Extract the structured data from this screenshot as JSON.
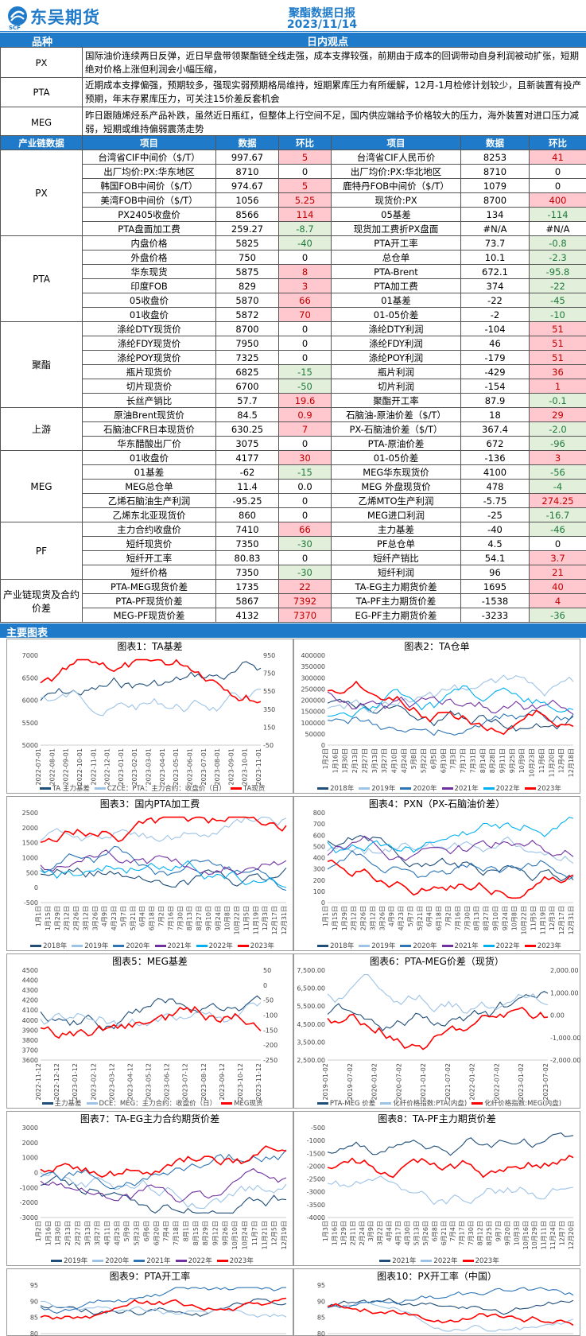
{
  "header": {
    "company": "东吴期货",
    "logo_letters": "SCF",
    "title": "聚酯数据日报",
    "date": "2023/11/14"
  },
  "view": {
    "head_left": "品种",
    "head_right": "日内观点",
    "rows": [
      {
        "name": "PX",
        "text": "国际油价连续两日反弹，近日早盘带领聚酯链全线走强，成本支撑较强，前期由于成本的回调带动自身利润被动扩张，短期绝对价格上涨但利润会小幅压缩，"
      },
      {
        "name": "PTA",
        "text": "近期成本支撑偏强，预期较多，强现实弱预期格局维持，短期累库压力有所缓解，12月-1月检修计划较少，且新装置有投产预期，年末存累库压力，可关注15价差反套机会"
      },
      {
        "name": "MEG",
        "text": "昨日跟随烯烃系产品补跌，虽然近日瓶红，但整体上行空间不足，国内供应端给予价格较大的压力，海外装置对进口压力减弱，短期或维持偏弱震荡走势"
      }
    ]
  },
  "table": {
    "headers": [
      "产业链数据",
      "项目",
      "数据",
      "环比",
      "项目",
      "数据",
      "环比"
    ],
    "groups": [
      {
        "name": "PX",
        "rows": [
          [
            "台湾省CIF中间价（$/T）",
            "997.67",
            "5",
            "r",
            "台湾省CIF人民币价",
            "8253",
            "41",
            "r"
          ],
          [
            "出厂均价:PX:华东地区",
            "8710",
            "0",
            "",
            "出厂均价:PX:华北地区",
            "8710",
            "0",
            ""
          ],
          [
            "韩国FOB中间价（$/T）",
            "974.67",
            "5",
            "r",
            "鹿特丹FOB中间价（$/T）",
            "1079",
            "0",
            ""
          ],
          [
            "美湾FOB中间价（$/T）",
            "1056",
            "5.25",
            "r",
            "现货价:PX",
            "8700",
            "400",
            "r"
          ],
          [
            "PX2405收盘价",
            "8566",
            "114",
            "r",
            "05基差",
            "134",
            "-114",
            "g"
          ],
          [
            "PTA盘面加工费",
            "259.27",
            "-8.7",
            "g",
            "现货加工费折PX盘面",
            "#N/A",
            "#N/A",
            ""
          ]
        ]
      },
      {
        "name": "PTA",
        "rows": [
          [
            "内盘价格",
            "5825",
            "-40",
            "g",
            "PTA开工率",
            "73.7",
            "-0.8",
            "g"
          ],
          [
            "外盘价格",
            "750",
            "0",
            "",
            "总仓单",
            "10.1",
            "-2.3",
            "g"
          ],
          [
            "华东现货",
            "5875",
            "8",
            "r",
            "PTA-Brent",
            "672.1",
            "-95.8",
            "g"
          ],
          [
            "印度FOB",
            "829",
            "3",
            "r",
            "PTA加工费",
            "374",
            "-22",
            "g"
          ],
          [
            "05收盘价",
            "5870",
            "66",
            "r",
            "01基差",
            "-22",
            "-45",
            "g"
          ],
          [
            "01收盘价",
            "5872",
            "70",
            "r",
            "01-05价差",
            "-2",
            "-10",
            "g"
          ]
        ]
      },
      {
        "name": "聚酯",
        "rows": [
          [
            "涤纶DTY现货价",
            "8700",
            "0",
            "",
            "涤纶DTY利润",
            "-104",
            "51",
            "r"
          ],
          [
            "涤纶FDY现货价",
            "7950",
            "0",
            "",
            "涤纶FDY利润",
            "46",
            "51",
            "r"
          ],
          [
            "涤纶POY现货价",
            "7325",
            "0",
            "",
            "涤纶POY利润",
            "-179",
            "51",
            "r"
          ],
          [
            "瓶片现货价",
            "6825",
            "-15",
            "g",
            "瓶片利润",
            "-429",
            "36",
            "r"
          ],
          [
            "切片现货价",
            "6700",
            "-50",
            "g",
            "切片利润",
            "-154",
            "1",
            "r"
          ],
          [
            "长丝产销比",
            "57.7",
            "19.6",
            "r",
            "聚酯开工率",
            "87.9",
            "-0.1",
            "g"
          ]
        ]
      },
      {
        "name": "上游",
        "rows": [
          [
            "原油Brent现货价",
            "84.5",
            "0.9",
            "r",
            "石脑油-原油价差（$/T）",
            "18",
            "29",
            "r"
          ],
          [
            "石脑油CFR日本现货价",
            "630.25",
            "7",
            "r",
            "PX-石脑油价差（$/T）",
            "367.4",
            "-2.0",
            "g"
          ],
          [
            "华东醋酸出厂价",
            "3075",
            "0",
            "",
            "PTA-原油价差",
            "672",
            "-96",
            "g"
          ]
        ]
      },
      {
        "name": "MEG",
        "rows": [
          [
            "01收盘价",
            "4177",
            "30",
            "r",
            "01-05价差",
            "-136",
            "3",
            "r"
          ],
          [
            "01基差",
            "-62",
            "-15",
            "g",
            "MEG华东现货价",
            "4100",
            "-56",
            "g"
          ],
          [
            "MEG总仓单",
            "11.4",
            "0.0",
            "",
            "MEG 外盘现货价",
            "478",
            "-4",
            "g"
          ],
          [
            "乙烯石脑油生产利润",
            "-95.25",
            "0",
            "",
            "乙烯MTO生产利润",
            "-5.75",
            "274.25",
            "r"
          ],
          [
            "乙烯东北亚现货价",
            "860",
            "0",
            "",
            "MEG进口利润",
            "-25",
            "-16.7",
            "g"
          ]
        ]
      },
      {
        "name": "PF",
        "rows": [
          [
            "主力合约收盘价",
            "7410",
            "66",
            "r",
            "主力基差",
            "-40",
            "-46",
            "g"
          ],
          [
            "短纤现货价",
            "7350",
            "-30",
            "g",
            "PF总仓单",
            "4.5",
            "0",
            ""
          ],
          [
            "短纤开工率",
            "80.83",
            "0",
            "",
            "短纤产销比",
            "54.1",
            "3.7",
            "r"
          ],
          [
            "短纤价格",
            "7350",
            "-30",
            "g",
            "短纤利润",
            "96",
            "21",
            "r"
          ]
        ]
      },
      {
        "name": "产业链现货及合约价差",
        "rows": [
          [
            "PTA-MEG现货价差",
            "1735",
            "22",
            "r",
            "TA-EG主力期货价差",
            "1695",
            "40",
            "r"
          ],
          [
            "PTA-PF现货价差",
            "5867",
            "7392",
            "r",
            "TA-PF主力期货价差",
            "-1538",
            "4",
            "r"
          ],
          [
            "MEG-PF现货价差",
            "4132",
            "7370",
            "r",
            "EG-PF主力期货价差",
            "-3233",
            "-36",
            "g"
          ]
        ]
      }
    ]
  },
  "charts_header": "主要图表",
  "charts": [
    {
      "title": "图表1：TA基差",
      "left_ticks": [
        "7000",
        "6500",
        "6000",
        "5500",
        "5000"
      ],
      "right_ticks": [
        "950",
        "750",
        "550",
        "350",
        "150",
        "-50"
      ],
      "x_ticks": [
        "2022-07-01",
        "2022-08-01",
        "2022-09-01",
        "2022-10-01",
        "2022-11-01",
        "2022-12-01",
        "2023-01-01",
        "2023-02-01",
        "2023-03-01",
        "2023-04-01",
        "2023-05-01",
        "2023-06-01",
        "2023-07-01",
        "2023-08-01",
        "2023-09-01",
        "2023-10-01",
        "2023-11-01"
      ],
      "legend": [
        "TA 主力基差",
        "CZCE：PTA：主力合约：收盘价（日）",
        "TA现货"
      ]
    },
    {
      "title": "图表2：TA仓单",
      "left_ticks": [
        "400000",
        "350000",
        "300000",
        "250000",
        "200000",
        "150000",
        "100000",
        "50000",
        "0"
      ],
      "right_ticks": [],
      "x_ticks": [
        "1月2日",
        "1月16日",
        "1月30日",
        "2月13日",
        "2月27日",
        "3月13日",
        "3月27日",
        "4月10日",
        "4月24日",
        "5月8日",
        "5月22日",
        "6月5日",
        "6月19日",
        "7月3日",
        "7月17日",
        "7月31日",
        "8月14日",
        "8月28日",
        "9月11日",
        "9月25日",
        "10月9日",
        "10月23日",
        "11月6日",
        "11月20日",
        "12月4日",
        "12月18日"
      ],
      "legend": [
        "2018年",
        "2019年",
        "2020年",
        "2021年",
        "2022年",
        "2023年"
      ]
    },
    {
      "title": "图表3：国内PTA加工费",
      "left_ticks": [
        "2500",
        "2000",
        "1500",
        "1000",
        "500",
        "0",
        "-500"
      ],
      "right_ticks": [],
      "x_ticks": [
        "1月1日",
        "1月15日",
        "1月29日",
        "2月12日",
        "2月26日",
        "3月12日",
        "3月26日",
        "4月9日",
        "4月23日",
        "5月7日",
        "5月21日",
        "6月4日",
        "6月18日",
        "7月2日",
        "7月16日",
        "7月30日",
        "8月13日",
        "8月27日",
        "9月10日",
        "9月24日",
        "10月8日",
        "10月22日",
        "11月5日",
        "11月19日",
        "12月3日",
        "12月17日",
        "12月31日"
      ],
      "legend": [
        "2018年",
        "2019年",
        "2020年",
        "2021年",
        "2022年",
        "2023年"
      ]
    },
    {
      "title": "图表4：PXN（PX-石脑油价差）",
      "left_ticks": [
        "800",
        "700",
        "600",
        "500",
        "400",
        "300",
        "200",
        "100",
        "0"
      ],
      "right_ticks": [],
      "x_ticks": [
        "1月1日",
        "1月15日",
        "1月29日",
        "2月12日",
        "2月26日",
        "3月12日",
        "3月26日",
        "4月9日",
        "4月23日",
        "5月7日",
        "5月21日",
        "6月4日",
        "6月18日",
        "7月2日",
        "7月16日",
        "7月30日",
        "8月13日",
        "8月27日",
        "9月10日",
        "9月24日",
        "10月8日",
        "10月22日",
        "11月5日",
        "11月19日",
        "12月3日",
        "12月17日",
        "12月31日"
      ],
      "legend": [
        "2018年",
        "2019年",
        "2020年",
        "2021年",
        "2022年",
        "2023年"
      ]
    },
    {
      "title": "图表5：MEG基差",
      "left_ticks": [
        "4500",
        "4400",
        "4300",
        "4200",
        "4100",
        "4000",
        "3900",
        "3800",
        "3700",
        "3600"
      ],
      "right_ticks": [
        "50",
        "0",
        "-50",
        "-100",
        "-150",
        "-200",
        "-250"
      ],
      "x_ticks": [
        "2022-11-12",
        "2022-12-12",
        "2023-01-12",
        "2023-02-12",
        "2023-03-12",
        "2023-04-12",
        "2023-05-12",
        "2023-06-12",
        "2023-07-12",
        "2023-08-12",
        "2023-09-12",
        "2023-10-12",
        "2023-11-12"
      ],
      "legend": [
        "主力基差",
        "DCE：MEG：主力合约：收盘价（日）",
        "MEG现货"
      ]
    },
    {
      "title": "图表6：PTA-MEG价差（现货）",
      "left_ticks": [
        "7,500.00",
        "6,500.00",
        "5,500.00",
        "4,500.00",
        "3,500.00",
        "2,500.00"
      ],
      "right_ticks": [
        "2,000.00",
        "1,000.00",
        "0.00",
        "-1,000.00",
        "-2,000.00"
      ],
      "x_ticks": [
        "2019-01-02",
        "2019-07-02",
        "2020-01-02",
        "2020-07-02",
        "2021-01-02",
        "2021-07-02",
        "2022-01-02",
        "2022-07-02",
        "2023-01-02",
        "2023-07-02"
      ],
      "legend": [
        "PTA-MEG 价差",
        "化纤价格指数:PTA(内盘)",
        "化纤价格指数:MEG(内盘)"
      ]
    },
    {
      "title": "图表7：TA-EG主力合约期货价差",
      "left_ticks": [
        "3000",
        "2000",
        "1000",
        "0",
        "-1000",
        "-2000",
        "-3000"
      ],
      "right_ticks": [],
      "x_ticks": [
        "1月2日",
        "1月16日",
        "1月30日",
        "2月13日",
        "2月27日",
        "3月13日",
        "3月27日",
        "4月11日",
        "4月25日",
        "5月9日",
        "5月23日",
        "6月6日",
        "6月20日",
        "7月4日",
        "7月18日",
        "8月1日",
        "8月15日",
        "8月29日",
        "9月12日",
        "9月26日",
        "10月10日",
        "10月24日",
        "11月7日",
        "11月21日",
        "12月5日",
        "12月19日"
      ],
      "legend": [
        "2019年",
        "2020年",
        "2021年",
        "2022年",
        "2023年"
      ]
    },
    {
      "title": "图表8：TA-PF主力期货价差",
      "left_ticks": [
        "-500",
        "-1000",
        "-1500",
        "-2000",
        "-2500",
        "-3000",
        "-3500",
        "-4000"
      ],
      "right_ticks": [],
      "x_ticks": [
        "1月3日",
        "1月16日",
        "1月29日",
        "2月11日",
        "2月24日",
        "3月9日",
        "3月22日",
        "4月4日",
        "4月17日",
        "4月30日",
        "5月13日",
        "5月26日",
        "6月8日",
        "6月21日",
        "7月4日",
        "7月17日",
        "7月30日",
        "8月12日",
        "8月25日",
        "9月7日",
        "9月20日",
        "10月3日",
        "10月16日",
        "10月29日",
        "11月11日",
        "11月24日",
        "12月7日",
        "12月20日"
      ],
      "legend": [
        "2021年",
        "2022年",
        "2023年"
      ]
    },
    {
      "title": "图表9：PTA开工率",
      "left_ticks": [
        "95",
        "90",
        "85",
        "80"
      ],
      "right_ticks": [],
      "x_ticks": [],
      "legend": []
    },
    {
      "title": "图表10：PX开工率（中国）",
      "left_ticks": [
        "95",
        "90",
        "85",
        "80"
      ],
      "right_ticks": [],
      "x_ticks": [],
      "legend": []
    }
  ],
  "colors": {
    "blue_header": "#1f7bc9",
    "up_bg": "#ffc7ce",
    "up_fg": "#c00000",
    "down_bg": "#e2efda",
    "down_fg": "#217a3c",
    "series": [
      "#1f4e79",
      "#9dc3e6",
      "#2e75b6",
      "#7030a0",
      "#00b0f0",
      "#ff0000",
      "#2f9999"
    ]
  }
}
